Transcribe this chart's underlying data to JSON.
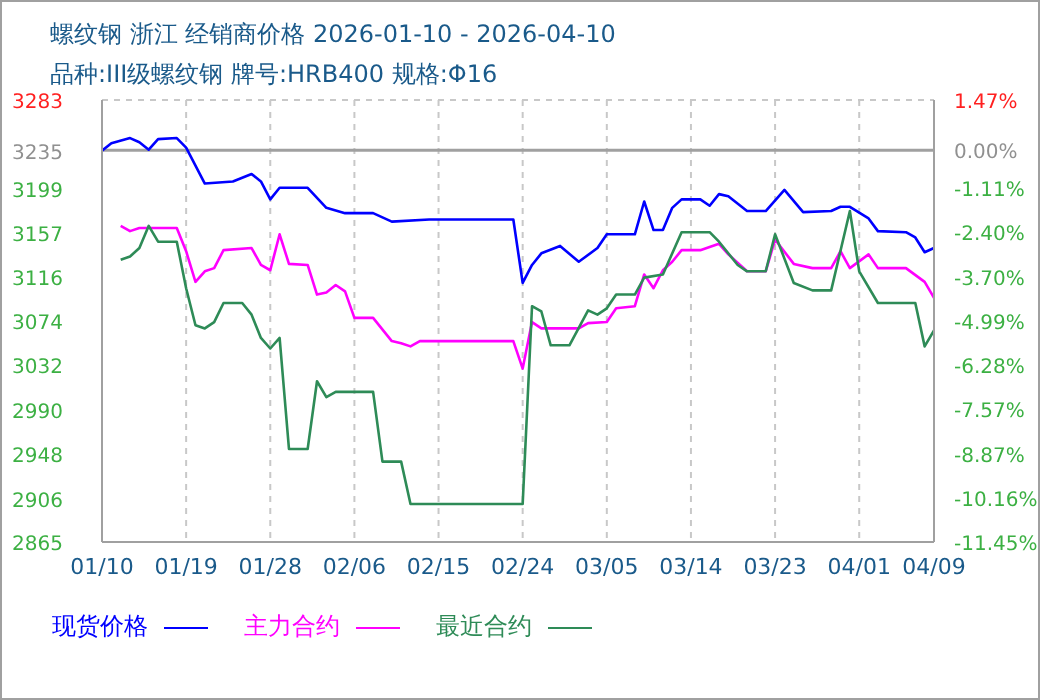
{
  "chart_data": {
    "type": "line",
    "title": "螺纹钢 浙江 经销商价格 2026-01-10 - 2026-04-10",
    "subtitle": "品种:III级螺纹钢 牌号:HRB400 规格:Φ16",
    "xlim": [
      "2026-01-10",
      "2026-04-09"
    ],
    "xticks": [
      {
        "value": "2026-01-10",
        "label": "01/10"
      },
      {
        "value": "2026-01-19",
        "label": "01/19"
      },
      {
        "value": "2026-01-28",
        "label": "01/28"
      },
      {
        "value": "2026-02-06",
        "label": "02/06"
      },
      {
        "value": "2026-02-15",
        "label": "02/15"
      },
      {
        "value": "2026-02-24",
        "label": "02/24"
      },
      {
        "value": "2026-03-05",
        "label": "03/05"
      },
      {
        "value": "2026-03-14",
        "label": "03/14"
      },
      {
        "value": "2026-03-23",
        "label": "03/23"
      },
      {
        "value": "2026-04-01",
        "label": "04/01"
      },
      {
        "value": "2026-04-09",
        "label": "04/09"
      }
    ],
    "ylim": [
      2865,
      3283
    ],
    "yticks": [
      3283,
      3235,
      3199,
      3157,
      3116,
      3074,
      3032,
      2990,
      2948,
      2906,
      2865
    ],
    "y2lim": [
      -11.45,
      1.47
    ],
    "y2ticks": [
      {
        "value": 1.47,
        "label": "1.47%"
      },
      {
        "value": 0,
        "label": "0.00%"
      },
      {
        "value": -1.11,
        "label": "-1.11%"
      },
      {
        "value": -2.4,
        "label": "-2.40%"
      },
      {
        "value": -3.7,
        "label": "-3.70%"
      },
      {
        "value": -4.99,
        "label": "-4.99%"
      },
      {
        "value": -6.28,
        "label": "-6.28%"
      },
      {
        "value": -7.57,
        "label": "-7.57%"
      },
      {
        "value": -8.87,
        "label": "-8.87%"
      },
      {
        "value": -10.16,
        "label": "-10.16%"
      },
      {
        "value": -11.45,
        "label": "-11.45%"
      }
    ],
    "ref_lines": [
      {
        "axis": "y2",
        "value": 0,
        "color": "#a0a0a0"
      }
    ],
    "grid": true,
    "legend": "bottom",
    "marker": "none",
    "line_style": "solid",
    "series": [
      {
        "name": "现货价格",
        "color": "#0000ff",
        "x": [
          "2026-01-10",
          "2026-01-11",
          "2026-01-13",
          "2026-01-14",
          "2026-01-15",
          "2026-01-16",
          "2026-01-18",
          "2026-01-19",
          "2026-01-21",
          "2026-01-24",
          "2026-01-26",
          "2026-01-27",
          "2026-01-28",
          "2026-01-29",
          "2026-02-01",
          "2026-02-03",
          "2026-02-05",
          "2026-02-08",
          "2026-02-10",
          "2026-02-14",
          "2026-02-23",
          "2026-02-24",
          "2026-02-25",
          "2026-02-26",
          "2026-02-28",
          "2026-03-02",
          "2026-03-04",
          "2026-03-05",
          "2026-03-08",
          "2026-03-09",
          "2026-03-10",
          "2026-03-11",
          "2026-03-12",
          "2026-03-13",
          "2026-03-15",
          "2026-03-16",
          "2026-03-17",
          "2026-03-18",
          "2026-03-20",
          "2026-03-22",
          "2026-03-24",
          "2026-03-26",
          "2026-03-29",
          "2026-03-30",
          "2026-03-31",
          "2026-04-02",
          "2026-04-03",
          "2026-04-06",
          "2026-04-07",
          "2026-04-08",
          "2026-04-09"
        ],
        "values": [
          3235,
          3242,
          3247,
          3243,
          3236,
          3246,
          3247,
          3238,
          3204,
          3206,
          3213,
          3206,
          3189,
          3200,
          3200,
          3181,
          3176,
          3176,
          3168,
          3170,
          3170,
          3110,
          3127,
          3138,
          3145,
          3130,
          3143,
          3156,
          3156,
          3187,
          3160,
          3160,
          3181,
          3189,
          3189,
          3183,
          3194,
          3192,
          3178,
          3178,
          3198,
          3177,
          3178,
          3182,
          3182,
          3171,
          3159,
          3158,
          3153,
          3139,
          3143
        ]
      },
      {
        "name": "主力合约",
        "color": "#ff00ff",
        "x": [
          "2026-01-12",
          "2026-01-13",
          "2026-01-14",
          "2026-01-18",
          "2026-01-19",
          "2026-01-20",
          "2026-01-21",
          "2026-01-22",
          "2026-01-23",
          "2026-01-26",
          "2026-01-27",
          "2026-01-28",
          "2026-01-29",
          "2026-01-30",
          "2026-02-01",
          "2026-02-02",
          "2026-02-03",
          "2026-02-04",
          "2026-02-05",
          "2026-02-06",
          "2026-02-08",
          "2026-02-10",
          "2026-02-11",
          "2026-02-12",
          "2026-02-13",
          "2026-02-23",
          "2026-02-24",
          "2026-02-25",
          "2026-02-26",
          "2026-03-02",
          "2026-03-03",
          "2026-03-05",
          "2026-03-06",
          "2026-03-08",
          "2026-03-09",
          "2026-03-10",
          "2026-03-11",
          "2026-03-12",
          "2026-03-13",
          "2026-03-15",
          "2026-03-17",
          "2026-03-18",
          "2026-03-20",
          "2026-03-22",
          "2026-03-23",
          "2026-03-25",
          "2026-03-27",
          "2026-03-29",
          "2026-03-30",
          "2026-03-31",
          "2026-04-02",
          "2026-04-03",
          "2026-04-06",
          "2026-04-08",
          "2026-04-09"
        ],
        "values": [
          3164,
          3159,
          3162,
          3162,
          3140,
          3111,
          3121,
          3124,
          3141,
          3143,
          3127,
          3122,
          3156,
          3128,
          3127,
          3099,
          3101,
          3108,
          3102,
          3077,
          3077,
          3055,
          3053,
          3050,
          3055,
          3055,
          3029,
          3073,
          3067,
          3067,
          3072,
          3073,
          3086,
          3088,
          3118,
          3105,
          3122,
          3130,
          3141,
          3141,
          3147,
          3137,
          3121,
          3121,
          3151,
          3128,
          3124,
          3124,
          3140,
          3124,
          3137,
          3124,
          3124,
          3111,
          3096
        ]
      },
      {
        "name": "最近合约",
        "color": "#2e8b57",
        "x": [
          "2026-01-12",
          "2026-01-13",
          "2026-01-14",
          "2026-01-15",
          "2026-01-16",
          "2026-01-18",
          "2026-01-19",
          "2026-01-20",
          "2026-01-21",
          "2026-01-22",
          "2026-01-23",
          "2026-01-25",
          "2026-01-26",
          "2026-01-27",
          "2026-01-28",
          "2026-01-29",
          "2026-01-30",
          "2026-02-01",
          "2026-02-02",
          "2026-02-03",
          "2026-02-04",
          "2026-02-08",
          "2026-02-09",
          "2026-02-11",
          "2026-02-12",
          "2026-02-24",
          "2026-02-25",
          "2026-02-26",
          "2026-02-27",
          "2026-03-01",
          "2026-03-03",
          "2026-03-04",
          "2026-03-05",
          "2026-03-06",
          "2026-03-08",
          "2026-03-09",
          "2026-03-11",
          "2026-03-13",
          "2026-03-16",
          "2026-03-17",
          "2026-03-19",
          "2026-03-20",
          "2026-03-22",
          "2026-03-23",
          "2026-03-25",
          "2026-03-27",
          "2026-03-29",
          "2026-03-31",
          "2026-04-01",
          "2026-04-03",
          "2026-04-07",
          "2026-04-08",
          "2026-04-09"
        ],
        "values": [
          3132,
          3135,
          3143,
          3164,
          3149,
          3149,
          3105,
          3070,
          3067,
          3073,
          3091,
          3091,
          3080,
          3058,
          3048,
          3058,
          2953,
          2953,
          3017,
          3002,
          3007,
          3007,
          2941,
          2941,
          2901,
          2901,
          3088,
          3083,
          3051,
          3051,
          3084,
          3080,
          3086,
          3099,
          3099,
          3115,
          3118,
          3158,
          3158,
          3149,
          3127,
          3121,
          3121,
          3156,
          3110,
          3103,
          3103,
          3178,
          3121,
          3091,
          3091,
          3050,
          3065
        ]
      }
    ]
  }
}
